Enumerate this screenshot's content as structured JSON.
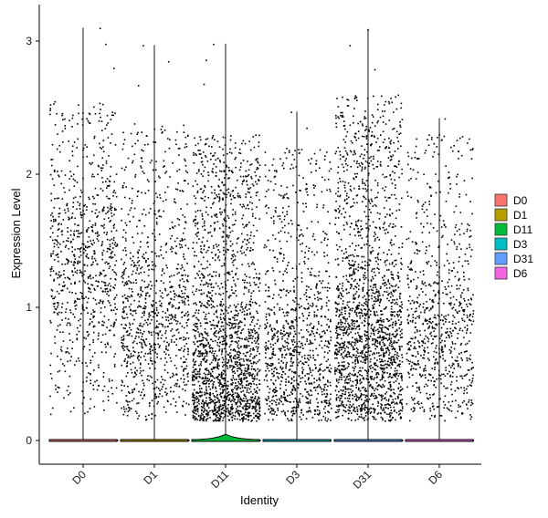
{
  "chart_data": {
    "type": "violin",
    "title": "",
    "xlabel": "Identity",
    "ylabel": "Expression Level",
    "ylim": [
      -0.17,
      3.3
    ],
    "yticks": [
      0,
      1,
      2,
      3
    ],
    "categories": [
      "D0",
      "D1",
      "D11",
      "D3",
      "D31",
      "D6"
    ],
    "series": [
      {
        "name": "D0",
        "color": "#F8766D",
        "max": 3.1,
        "violin_bump": 0.0,
        "point_count": 850,
        "points_spread": [
          0.0,
          2.55
        ],
        "density_center": 1.3
      },
      {
        "name": "D1",
        "color": "#B79F00",
        "max": 2.97,
        "violin_bump": 0.0,
        "point_count": 950,
        "points_spread": [
          0.0,
          2.4
        ],
        "density_center": 0.9
      },
      {
        "name": "D11",
        "color": "#00BA38",
        "max": 2.98,
        "violin_bump": 0.04,
        "point_count": 1900,
        "points_spread": [
          0.0,
          2.3
        ],
        "density_center": 0.45
      },
      {
        "name": "D3",
        "color": "#00BFC4",
        "max": 2.47,
        "violin_bump": 0.0,
        "point_count": 1000,
        "points_spread": [
          0.0,
          2.2
        ],
        "density_center": 0.6
      },
      {
        "name": "D31",
        "color": "#619CFF",
        "max": 3.09,
        "violin_bump": 0.0,
        "point_count": 1900,
        "points_spread": [
          0.0,
          2.6
        ],
        "density_center": 0.65
      },
      {
        "name": "D6",
        "color": "#F564E3",
        "max": 2.42,
        "violin_bump": 0.0,
        "point_count": 800,
        "points_spread": [
          0.0,
          2.3
        ],
        "density_center": 0.8
      }
    ],
    "legend_placement": "right",
    "grid": false
  }
}
